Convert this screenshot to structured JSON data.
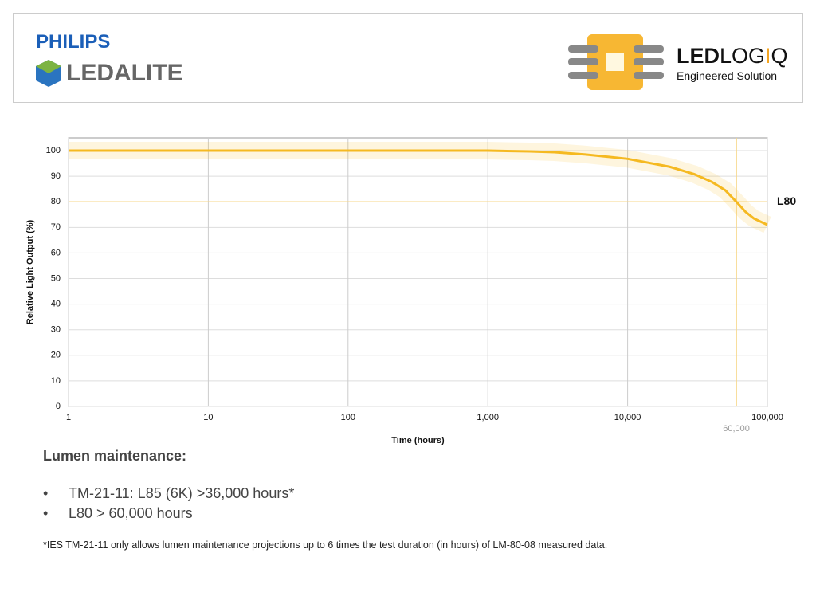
{
  "header": {
    "brand": "PHILIPS",
    "product": "LEDALITE",
    "partner": {
      "parts": [
        "LED",
        "LOG",
        "I",
        "Q"
      ],
      "tagline": "Engineered Solution"
    }
  },
  "chart_data": {
    "type": "line",
    "xlabel": "Time (hours)",
    "ylabel": "Relative Light Output (%)",
    "xscale": "log",
    "x": [
      1,
      10,
      100,
      1000,
      2000,
      3000,
      5000,
      10000,
      20000,
      30000,
      40000,
      50000,
      60000,
      70000,
      80000,
      100000
    ],
    "series": [
      {
        "color": "#f5b921",
        "values": [
          100,
          100,
          100,
          100,
          99.7,
          99.4,
          98.5,
          96.8,
          93.7,
          90.8,
          87.8,
          84.5,
          80,
          76,
          73.5,
          71
        ]
      }
    ],
    "xlim": [
      1,
      100000
    ],
    "xticks": [
      1,
      10,
      100,
      {
        "value": 1000,
        "label": "1,000"
      },
      {
        "value": 10000,
        "label": "10,000"
      },
      {
        "value": 100000,
        "label": "100,000"
      }
    ],
    "ylim": [
      0,
      105
    ],
    "yticks": [
      0,
      10,
      20,
      30,
      40,
      50,
      60,
      70,
      80,
      90,
      100
    ],
    "grid": true,
    "hline": {
      "value": 80,
      "label": "L80",
      "color": "#f7d78a"
    },
    "vline": {
      "value": 60000,
      "label": "60,000",
      "color": "#f7d78a"
    }
  },
  "notes": {
    "heading": "Lumen maintenance:",
    "bullets": [
      "TM-21-11: L85 (6K) >36,000 hours*",
      "L80 > 60,000 hours"
    ],
    "footnote": "*IES TM-21-11 only allows lumen maintenance projections up to 6 times the test duration (in hours) of LM-80-08 measured data."
  }
}
